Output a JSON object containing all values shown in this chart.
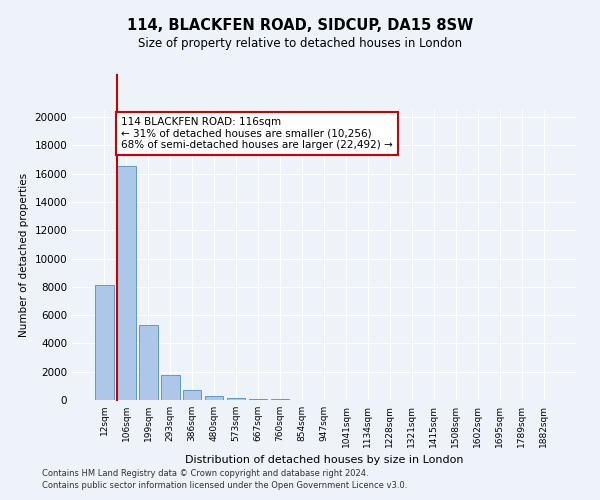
{
  "title1": "114, BLACKFEN ROAD, SIDCUP, DA15 8SW",
  "title2": "Size of property relative to detached houses in London",
  "xlabel": "Distribution of detached houses by size in London",
  "ylabel": "Number of detached properties",
  "annotation_line1": "114 BLACKFEN ROAD: 116sqm",
  "annotation_line2": "← 31% of detached houses are smaller (10,256)",
  "annotation_line3": "68% of semi-detached houses are larger (22,492) →",
  "footer1": "Contains HM Land Registry data © Crown copyright and database right 2024.",
  "footer2": "Contains public sector information licensed under the Open Government Licence v3.0.",
  "bin_labels": [
    "12sqm",
    "106sqm",
    "199sqm",
    "293sqm",
    "386sqm",
    "480sqm",
    "573sqm",
    "667sqm",
    "760sqm",
    "854sqm",
    "947sqm",
    "1041sqm",
    "1134sqm",
    "1228sqm",
    "1321sqm",
    "1415sqm",
    "1508sqm",
    "1602sqm",
    "1695sqm",
    "1789sqm",
    "1882sqm"
  ],
  "bar_heights": [
    8100,
    16550,
    5300,
    1800,
    700,
    300,
    150,
    100,
    50,
    0,
    0,
    0,
    0,
    0,
    0,
    0,
    0,
    0,
    0,
    0,
    0
  ],
  "bar_color": "#aec6e8",
  "bar_edge_color": "#5b9bd5",
  "vline_color": "#cc0000",
  "annotation_box_color": "#cc0000",
  "background_color": "#eef2f9",
  "grid_color": "#ffffff",
  "ylim": [
    0,
    20500
  ],
  "yticks": [
    0,
    2000,
    4000,
    6000,
    8000,
    10000,
    12000,
    14000,
    16000,
    18000,
    20000
  ]
}
